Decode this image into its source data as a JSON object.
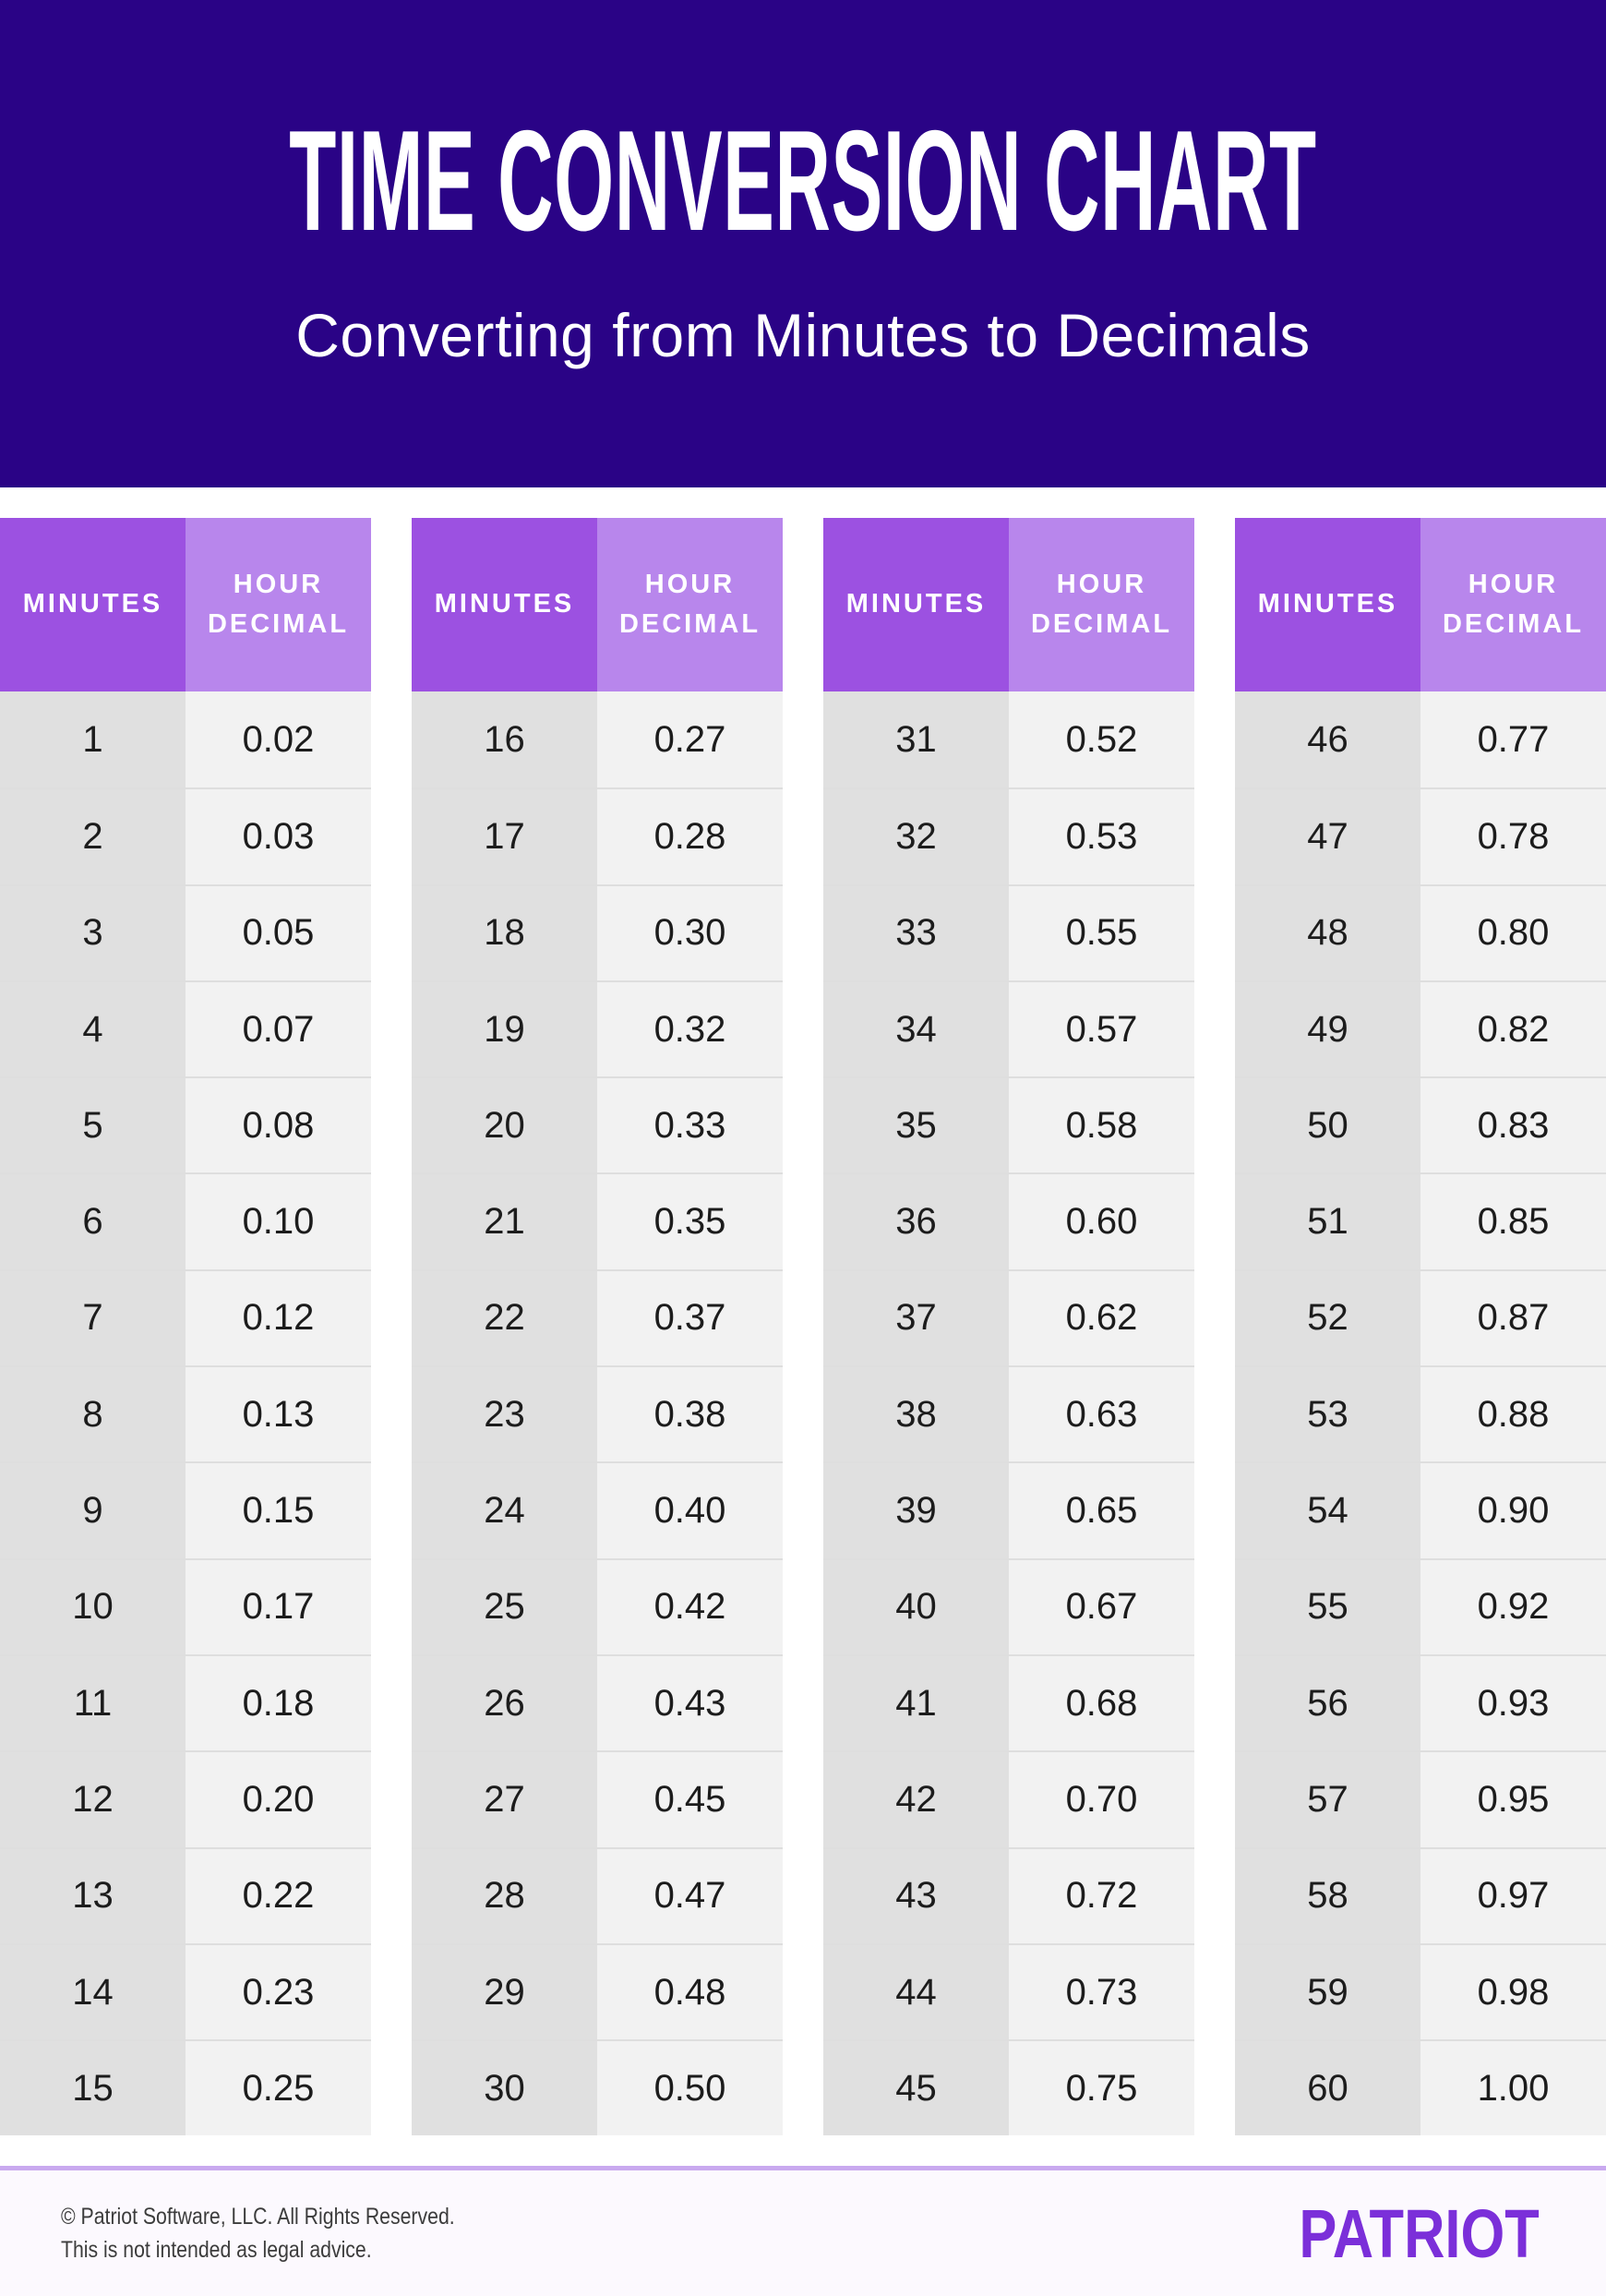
{
  "chart_data": {
    "type": "table",
    "title": "TIME CONVERSION CHART",
    "subtitle": "Converting from Minutes to Decimals",
    "column_headers": [
      "MINUTES",
      "HOUR DECIMAL"
    ],
    "tables": [
      {
        "rows": [
          [
            "1",
            "0.02"
          ],
          [
            "2",
            "0.03"
          ],
          [
            "3",
            "0.05"
          ],
          [
            "4",
            "0.07"
          ],
          [
            "5",
            "0.08"
          ],
          [
            "6",
            "0.10"
          ],
          [
            "7",
            "0.12"
          ],
          [
            "8",
            "0.13"
          ],
          [
            "9",
            "0.15"
          ],
          [
            "10",
            "0.17"
          ],
          [
            "11",
            "0.18"
          ],
          [
            "12",
            "0.20"
          ],
          [
            "13",
            "0.22"
          ],
          [
            "14",
            "0.23"
          ],
          [
            "15",
            "0.25"
          ]
        ]
      },
      {
        "rows": [
          [
            "16",
            "0.27"
          ],
          [
            "17",
            "0.28"
          ],
          [
            "18",
            "0.30"
          ],
          [
            "19",
            "0.32"
          ],
          [
            "20",
            "0.33"
          ],
          [
            "21",
            "0.35"
          ],
          [
            "22",
            "0.37"
          ],
          [
            "23",
            "0.38"
          ],
          [
            "24",
            "0.40"
          ],
          [
            "25",
            "0.42"
          ],
          [
            "26",
            "0.43"
          ],
          [
            "27",
            "0.45"
          ],
          [
            "28",
            "0.47"
          ],
          [
            "29",
            "0.48"
          ],
          [
            "30",
            "0.50"
          ]
        ]
      },
      {
        "rows": [
          [
            "31",
            "0.52"
          ],
          [
            "32",
            "0.53"
          ],
          [
            "33",
            "0.55"
          ],
          [
            "34",
            "0.57"
          ],
          [
            "35",
            "0.58"
          ],
          [
            "36",
            "0.60"
          ],
          [
            "37",
            "0.62"
          ],
          [
            "38",
            "0.63"
          ],
          [
            "39",
            "0.65"
          ],
          [
            "40",
            "0.67"
          ],
          [
            "41",
            "0.68"
          ],
          [
            "42",
            "0.70"
          ],
          [
            "43",
            "0.72"
          ],
          [
            "44",
            "0.73"
          ],
          [
            "45",
            "0.75"
          ]
        ]
      },
      {
        "rows": [
          [
            "46",
            "0.77"
          ],
          [
            "47",
            "0.78"
          ],
          [
            "48",
            "0.80"
          ],
          [
            "49",
            "0.82"
          ],
          [
            "50",
            "0.83"
          ],
          [
            "51",
            "0.85"
          ],
          [
            "52",
            "0.87"
          ],
          [
            "53",
            "0.88"
          ],
          [
            "54",
            "0.90"
          ],
          [
            "55",
            "0.92"
          ],
          [
            "56",
            "0.93"
          ],
          [
            "57",
            "0.95"
          ],
          [
            "58",
            "0.97"
          ],
          [
            "59",
            "0.98"
          ],
          [
            "60",
            "1.00"
          ]
        ]
      }
    ]
  },
  "footer": {
    "copyright": "© Patriot Software, LLC. All Rights Reserved.",
    "disclaimer": "This is not intended as legal advice.",
    "logo": "PATRIOT"
  },
  "colors": {
    "hero_bg": "#2A0386",
    "title_text": "#FFFFFF",
    "minutes_header_bg": "#9C51E1",
    "decimal_header_bg": "#B886EC",
    "minutes_cell_bg": "#E0E0E0",
    "decimal_cell_bg": "#F2F2F2",
    "cell_text": "#1C1C1C",
    "footer_divider": "#C9A9EF",
    "footer_bg": "#FCF9FE",
    "footer_text": "#3C3C3C",
    "logo_color": "#7B2FD9"
  }
}
